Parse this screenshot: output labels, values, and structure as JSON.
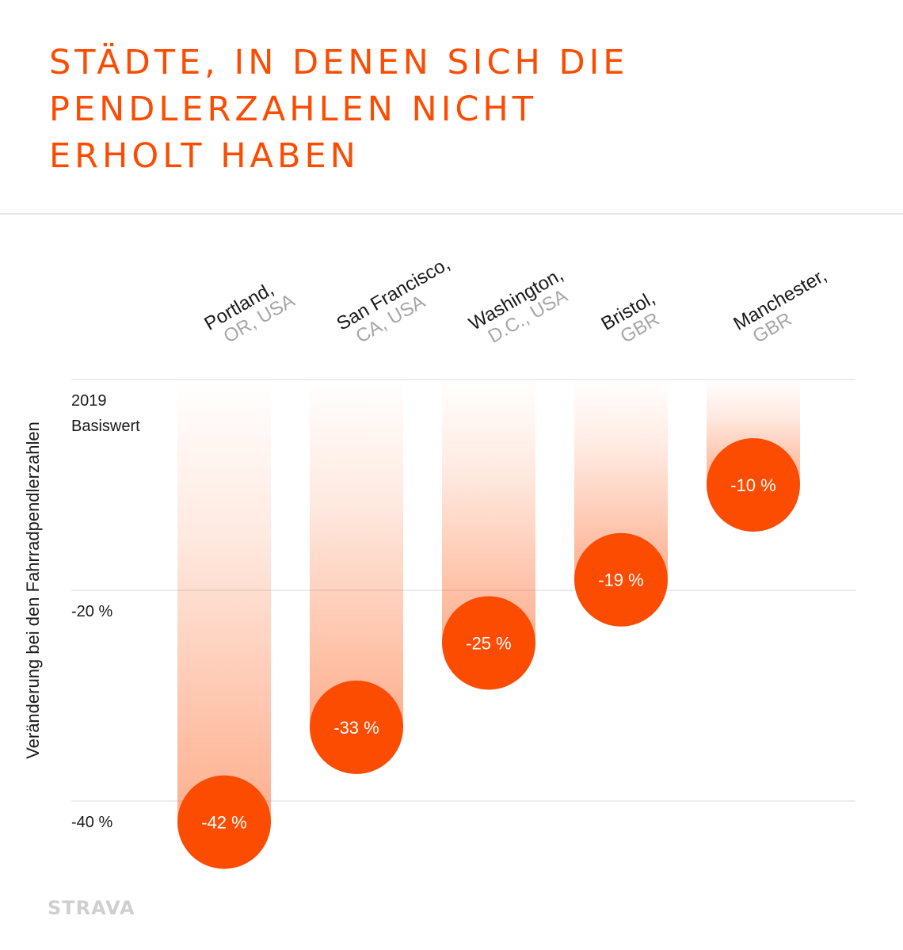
{
  "title_lines": [
    "STÄDTE, IN DENEN SICH DIE",
    "PENDLERZAHLEN NICHT",
    "ERHOLT HABEN"
  ],
  "colors": {
    "accent": "#fc4c02",
    "city_text": "#1a1a1a",
    "region_text": "#a6a6a6",
    "gridline": "#e6e6e6"
  },
  "chart_data": {
    "type": "bar",
    "title": "STÄDTE, IN DENEN SICH DIE PENDLERZAHLEN NICHT ERHOLT HABEN",
    "ylabel": "Veränderung bei den Fahrradpendlerzahlen",
    "xlabel": "",
    "ylim": [
      -42,
      0
    ],
    "grid": true,
    "y_ticks": [
      {
        "value": 0,
        "label": [
          "2019",
          "Basiswert"
        ]
      },
      {
        "value": -20,
        "label": [
          "-20 %"
        ]
      },
      {
        "value": -40,
        "label": [
          "-40 %"
        ]
      }
    ],
    "categories": [
      {
        "city": "Portland,",
        "region": "OR, USA"
      },
      {
        "city": "San Francisco,",
        "region": "CA, USA"
      },
      {
        "city": "Washington,",
        "region": "D.C., USA"
      },
      {
        "city": "Bristol,",
        "region": "GBR"
      },
      {
        "city": "Manchester,",
        "region": "GBR"
      }
    ],
    "values": [
      -42,
      -33,
      -25,
      -19,
      -10
    ],
    "data_labels": [
      "-42 %",
      "-33 %",
      "-25 %",
      "-19 %",
      "-10 %"
    ]
  },
  "logo": "STRAVA"
}
